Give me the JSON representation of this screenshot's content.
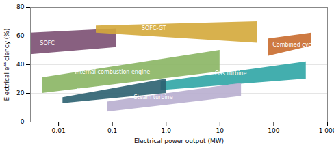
{
  "chart_data": {
    "type": "area",
    "xlabel": "Electrical power output (MW)",
    "ylabel": "Electrical efficiency (%)",
    "log": "x",
    "grid": "y",
    "xlim": [
      0.003,
      1000
    ],
    "ylim": [
      0,
      80
    ],
    "xticks": [
      0.01,
      0.1,
      {
        "value": 1.0,
        "label": "1.0"
      },
      10,
      100,
      {
        "value": 1000,
        "label": "1 000"
      }
    ],
    "yticks": [
      0,
      20,
      40,
      60,
      80
    ],
    "series": [
      {
        "name": "SOFC",
        "color": "#7b4f72",
        "x": [
          0.003,
          0.12
        ],
        "lower": [
          47,
          52
        ],
        "upper": [
          62,
          65
        ]
      },
      {
        "name": "SOFC-GT",
        "color": "#d4a83a",
        "x": [
          0.05,
          50
        ],
        "lower": [
          62,
          55
        ],
        "upper": [
          67,
          70
        ]
      },
      {
        "name": "Combined cycle",
        "color": "#c96b2e",
        "x": [
          80,
          500
        ],
        "lower": [
          46,
          53
        ],
        "upper": [
          58,
          62
        ]
      },
      {
        "name": "Internal combustion engine",
        "color": "#8ab563",
        "x": [
          0.005,
          10
        ],
        "lower": [
          20,
          35
        ],
        "upper": [
          31,
          50
        ]
      },
      {
        "name": "Gas turbine",
        "color": "#2fa5a5",
        "x": [
          0.8,
          400
        ],
        "lower": [
          22,
          30
        ],
        "upper": [
          28,
          42
        ]
      },
      {
        "name": "ORC",
        "color": "#2b6070",
        "x": [
          0.012,
          1.0
        ],
        "lower": [
          13,
          20
        ],
        "upper": [
          17,
          30
        ]
      },
      {
        "name": "Steam turbine",
        "color": "#b8aecf",
        "x": [
          0.08,
          25
        ],
        "lower": [
          7,
          18
        ],
        "upper": [
          14,
          27
        ]
      }
    ],
    "annotations": [
      {
        "text": "SOFC",
        "x": 0.0045,
        "y": 55,
        "color": "white"
      },
      {
        "text": "SOFC-GT",
        "x": 0.35,
        "y": 65.5,
        "color": "white"
      },
      {
        "text": "Combined cycle",
        "x": 95,
        "y": 54,
        "color": "white"
      },
      {
        "text": "Internal combustion engine",
        "x": 0.02,
        "y": 35,
        "color": "white"
      },
      {
        "text": "Gas turbine",
        "x": 8,
        "y": 34,
        "color": "white"
      },
      {
        "text": "ORC",
        "x": 0.022,
        "y": 22,
        "color": "white"
      },
      {
        "text": "Steam turbine",
        "x": 0.25,
        "y": 17,
        "color": "white"
      }
    ]
  }
}
